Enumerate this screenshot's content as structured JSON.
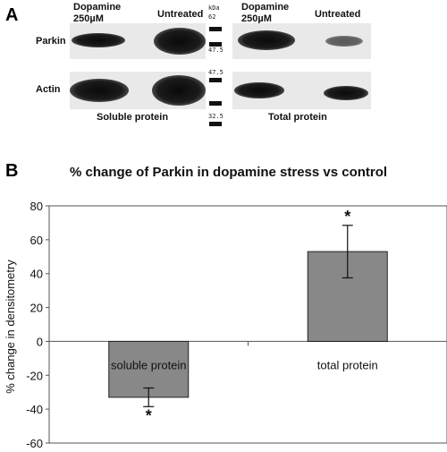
{
  "panel_a": {
    "letter": "A",
    "lane_labels": {
      "dopamine_left": [
        "Dopamine",
        "250µM"
      ],
      "untreated_left": "Untreated",
      "dopamine_right": [
        "Dopamine",
        "250µM"
      ],
      "untreated_right": "Untreated"
    },
    "kda_label": "kDa",
    "markers": [
      "62",
      "47.5",
      "47.5",
      "32.5"
    ],
    "row_labels": [
      "Parkin",
      "Actin"
    ],
    "section_labels": [
      "Soluble protein",
      "Total protein"
    ]
  },
  "panel_b": {
    "letter": "B",
    "chart_data": {
      "type": "bar",
      "title": "% change of Parkin in dopamine stress vs control",
      "ylabel": "% change in densitometry",
      "xlabel": "",
      "ylim": [
        -60,
        80
      ],
      "yticks": [
        80,
        60,
        40,
        20,
        0,
        -20,
        -40,
        -60
      ],
      "categories": [
        "soluble protein",
        "total protein"
      ],
      "values": [
        -33,
        53
      ],
      "error": [
        5.5,
        15.5
      ],
      "significance": [
        "*",
        "*"
      ],
      "bar_color": "#888888",
      "grid": false
    }
  }
}
